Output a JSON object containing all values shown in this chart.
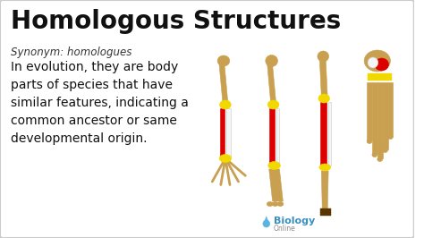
{
  "title": "Homologous Structures",
  "synonym_label": "Synonym: homologues",
  "body_text": "In evolution, they are body\nparts of species that have\nsimilar features, indicating a\ncommon ancestor or same\ndevelopmental origin.",
  "watermark_text1": "Biology",
  "watermark_text2": "Online",
  "bg_color": "#ffffff",
  "border_color": "#cccccc",
  "title_color": "#111111",
  "synonym_color": "#333333",
  "body_color": "#111111",
  "title_fontsize": 20,
  "synonym_fontsize": 8.5,
  "body_fontsize": 10,
  "bone_color": "#c8a050",
  "red_color": "#dd0000",
  "yellow_color": "#f0d800",
  "white_color": "#f5f5f5",
  "dark_bone": "#8B6010"
}
